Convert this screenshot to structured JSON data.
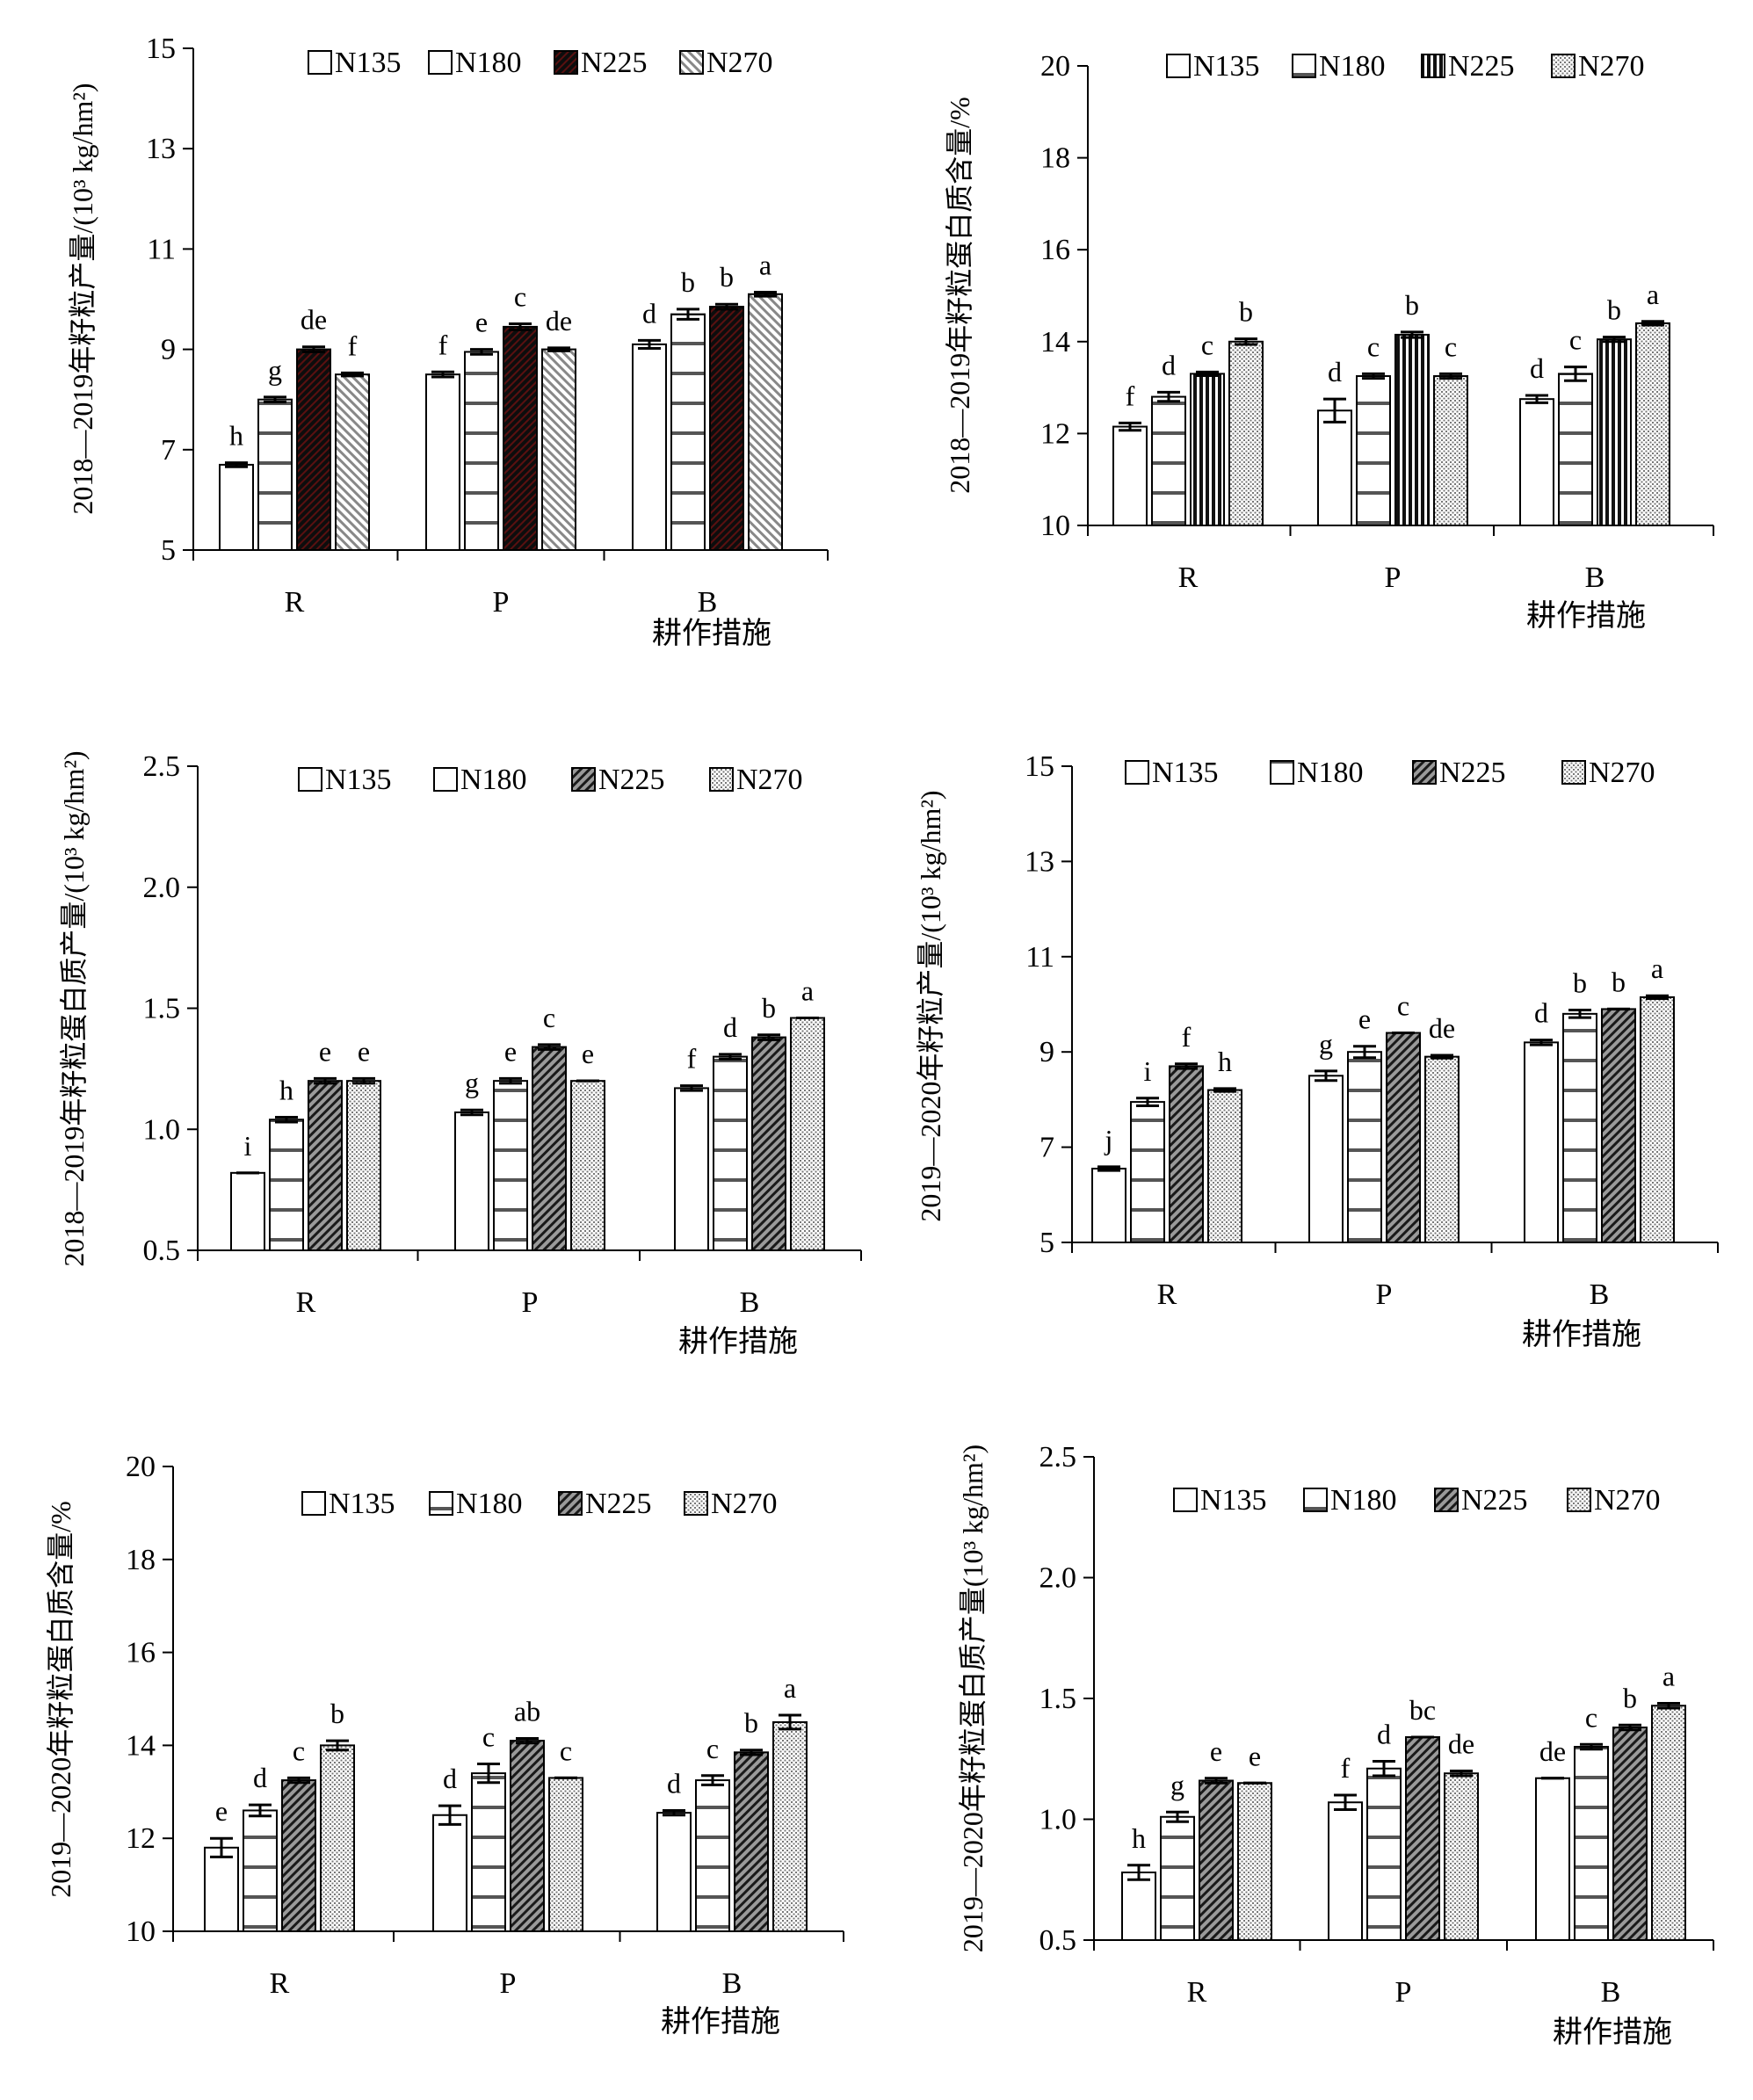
{
  "chart_data": [
    {
      "type": "bar",
      "ylabel": "2018—2019年籽粒产量/(10³ kg/hm²)",
      "xlabel": "耕作措施",
      "ylim": [
        5,
        15
      ],
      "yticks": [
        "5",
        "7",
        "9",
        "11",
        "13",
        "15"
      ],
      "categories": [
        "R",
        "P",
        "B"
      ],
      "legend_position": "top",
      "series": [
        {
          "name": "N135",
          "values": [
            6.7,
            8.5,
            9.1
          ],
          "errors": [
            0.04,
            0.05,
            0.08
          ],
          "letters": [
            "h",
            "f",
            "d"
          ]
        },
        {
          "name": "N180",
          "values": [
            8.0,
            8.95,
            9.7
          ],
          "errors": [
            0.05,
            0.05,
            0.1
          ],
          "letters": [
            "g",
            "e",
            "b"
          ]
        },
        {
          "name": "N225",
          "values": [
            9.0,
            9.45,
            9.85
          ],
          "errors": [
            0.05,
            0.06,
            0.05
          ],
          "letters": [
            "de",
            "c",
            "b"
          ]
        },
        {
          "name": "N270",
          "values": [
            8.5,
            9.0,
            10.1
          ],
          "errors": [
            0.03,
            0.03,
            0.04
          ],
          "letters": [
            "f",
            "de",
            "a"
          ]
        }
      ]
    },
    {
      "type": "bar",
      "ylabel": "2018—2019年籽粒蛋白质含量/%",
      "xlabel": "耕作措施",
      "ylim": [
        10,
        20
      ],
      "yticks": [
        "10",
        "12",
        "14",
        "16",
        "18",
        "20"
      ],
      "categories": [
        "R",
        "P",
        "B"
      ],
      "legend_position": "top",
      "series": [
        {
          "name": "N135",
          "values": [
            12.15,
            12.5,
            12.75
          ],
          "errors": [
            0.08,
            0.25,
            0.08
          ],
          "letters": [
            "f",
            "d",
            "d"
          ]
        },
        {
          "name": "N180",
          "values": [
            12.8,
            13.25,
            13.3
          ],
          "errors": [
            0.1,
            0.05,
            0.15
          ],
          "letters": [
            "d",
            "c",
            "c"
          ]
        },
        {
          "name": "N225",
          "values": [
            13.3,
            14.15,
            14.05
          ],
          "errors": [
            0.04,
            0.06,
            0.05
          ],
          "letters": [
            "c",
            "b",
            "b"
          ]
        },
        {
          "name": "N270",
          "values": [
            14.0,
            13.25,
            14.4
          ],
          "errors": [
            0.06,
            0.05,
            0.04
          ],
          "letters": [
            "b",
            "c",
            "a"
          ]
        }
      ]
    },
    {
      "type": "bar",
      "ylabel": "2018—2019年籽粒蛋白质产量/(10³ kg/hm²)",
      "xlabel": "耕作措施",
      "ylim": [
        0.5,
        2.5
      ],
      "yticks": [
        "0.5",
        "1.0",
        "1.5",
        "2.0",
        "2.5"
      ],
      "categories": [
        "R",
        "P",
        "B"
      ],
      "legend_position": "top",
      "series": [
        {
          "name": "N135",
          "values": [
            0.82,
            1.07,
            1.17
          ],
          "errors": [
            0.0,
            0.01,
            0.01
          ],
          "letters": [
            "i",
            "g",
            "f"
          ]
        },
        {
          "name": "N180",
          "values": [
            1.04,
            1.2,
            1.3
          ],
          "errors": [
            0.01,
            0.01,
            0.01
          ],
          "letters": [
            "h",
            "e",
            "d"
          ]
        },
        {
          "name": "N225",
          "values": [
            1.2,
            1.34,
            1.38
          ],
          "errors": [
            0.01,
            0.01,
            0.01
          ],
          "letters": [
            "e",
            "c",
            "b"
          ]
        },
        {
          "name": "N270",
          "values": [
            1.2,
            1.2,
            1.46
          ],
          "errors": [
            0.01,
            0.0,
            0.0
          ],
          "letters": [
            "e",
            "e",
            "a"
          ]
        }
      ]
    },
    {
      "type": "bar",
      "ylabel": "2019—2020年籽粒产量/(10³ kg/hm²)",
      "xlabel": "耕作措施",
      "ylim": [
        5,
        15
      ],
      "yticks": [
        "5",
        "7",
        "9",
        "11",
        "13",
        "15"
      ],
      "categories": [
        "R",
        "P",
        "B"
      ],
      "legend_position": "top",
      "series": [
        {
          "name": "N135",
          "values": [
            6.55,
            8.5,
            9.2
          ],
          "errors": [
            0.04,
            0.1,
            0.05
          ],
          "letters": [
            "j",
            "g",
            "d"
          ]
        },
        {
          "name": "N180",
          "values": [
            7.95,
            9.0,
            9.8
          ],
          "errors": [
            0.08,
            0.12,
            0.08
          ],
          "letters": [
            "i",
            "e",
            "b"
          ]
        },
        {
          "name": "N225",
          "values": [
            8.7,
            9.4,
            9.9
          ],
          "errors": [
            0.05,
            0.0,
            0.0
          ],
          "letters": [
            "f",
            "c",
            "b"
          ]
        },
        {
          "name": "N270",
          "values": [
            8.2,
            8.9,
            10.15
          ],
          "errors": [
            0.03,
            0.03,
            0.03
          ],
          "letters": [
            "h",
            "de",
            "a"
          ]
        }
      ]
    },
    {
      "type": "bar",
      "ylabel": "2019—2020年籽粒蛋白质含量/%",
      "xlabel": "耕作措施",
      "ylim": [
        10,
        20
      ],
      "yticks": [
        "10",
        "12",
        "14",
        "16",
        "18",
        "20"
      ],
      "categories": [
        "R",
        "P",
        "B"
      ],
      "legend_position": "top",
      "series": [
        {
          "name": "N135",
          "values": [
            11.8,
            12.5,
            12.55
          ],
          "errors": [
            0.2,
            0.2,
            0.05
          ],
          "letters": [
            "e",
            "d",
            "d"
          ]
        },
        {
          "name": "N180",
          "values": [
            12.6,
            13.4,
            13.25
          ],
          "errors": [
            0.12,
            0.2,
            0.1
          ],
          "letters": [
            "d",
            "c",
            "c"
          ]
        },
        {
          "name": "N225",
          "values": [
            13.25,
            14.1,
            13.85
          ],
          "errors": [
            0.05,
            0.05,
            0.05
          ],
          "letters": [
            "c",
            "ab",
            "b"
          ]
        },
        {
          "name": "N270",
          "values": [
            14.0,
            13.3,
            14.5
          ],
          "errors": [
            0.1,
            0.0,
            0.15
          ],
          "letters": [
            "b",
            "c",
            "a"
          ]
        }
      ]
    },
    {
      "type": "bar",
      "ylabel": "2019—2020年籽粒蛋白质产量(10³ kg/hm²)",
      "xlabel": "耕作措施",
      "ylim": [
        0.5,
        2.5
      ],
      "yticks": [
        "0.5",
        "1.0",
        "1.5",
        "2.0",
        "2.5"
      ],
      "categories": [
        "R",
        "P",
        "B"
      ],
      "legend_position": "top",
      "series": [
        {
          "name": "N135",
          "values": [
            0.78,
            1.07,
            1.17
          ],
          "errors": [
            0.03,
            0.03,
            0.0
          ],
          "letters": [
            "h",
            "f",
            "de"
          ]
        },
        {
          "name": "N180",
          "values": [
            1.01,
            1.21,
            1.3
          ],
          "errors": [
            0.02,
            0.03,
            0.01
          ],
          "letters": [
            "g",
            "d",
            "c"
          ]
        },
        {
          "name": "N225",
          "values": [
            1.16,
            1.34,
            1.38
          ],
          "errors": [
            0.01,
            0.0,
            0.01
          ],
          "letters": [
            "e",
            "bc",
            "b"
          ]
        },
        {
          "name": "N270",
          "values": [
            1.15,
            1.19,
            1.47
          ],
          "errors": [
            0.0,
            0.01,
            0.01
          ],
          "letters": [
            "e",
            "de",
            "a"
          ]
        }
      ]
    }
  ]
}
